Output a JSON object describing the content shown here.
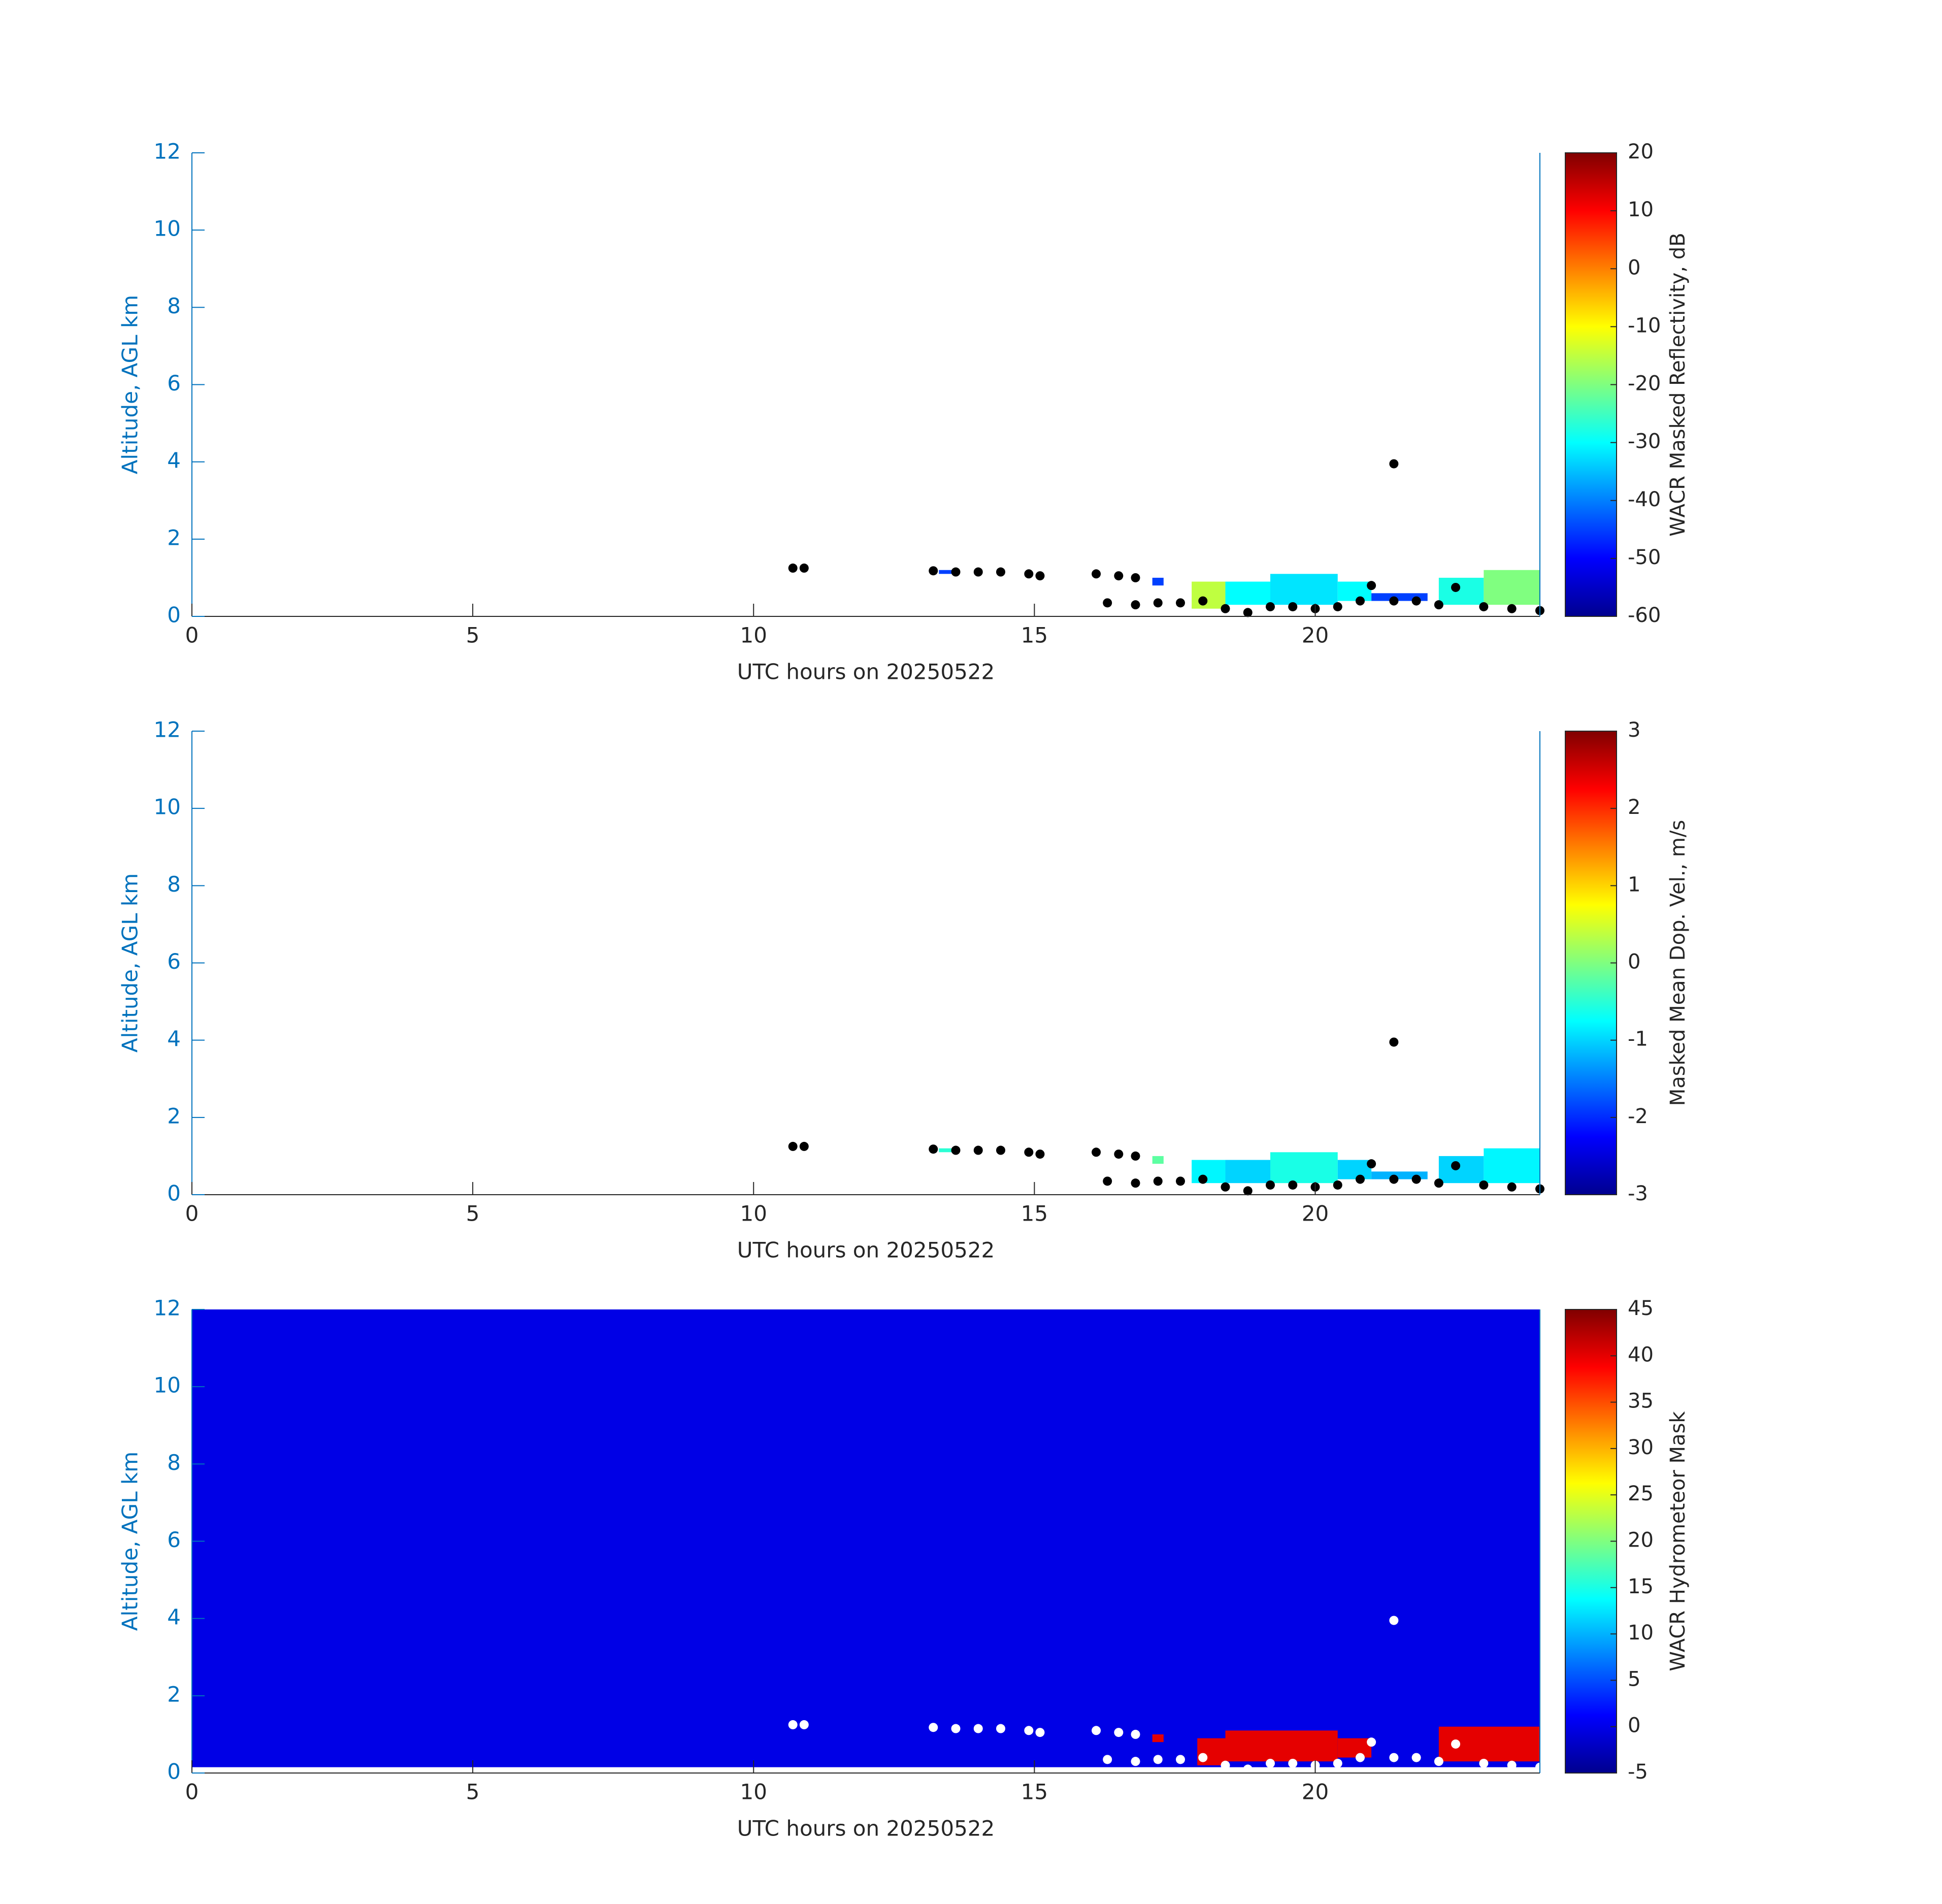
{
  "chart_data": [
    {
      "type": "heatmap",
      "xlabel": "UTC hours on 20250522",
      "ylabel": "Altitude, AGL km",
      "xlim": [
        0,
        24
      ],
      "xticks": [
        0,
        5,
        10,
        15,
        20
      ],
      "ylim": [
        0,
        12
      ],
      "yticks": [
        0,
        2,
        4,
        6,
        8,
        10,
        12
      ],
      "colorbar_label": "WACR Masked Reflectivity, dB",
      "clim": [
        -60,
        20
      ],
      "cticks": [
        -60,
        -50,
        -40,
        -30,
        -20,
        -10,
        0,
        10,
        20
      ],
      "cells": [
        [
          17.8,
          18.4,
          0.2,
          0.9,
          -15
        ],
        [
          18.4,
          19.2,
          0.3,
          0.9,
          -30
        ],
        [
          19.2,
          20.4,
          0.3,
          1.1,
          -32
        ],
        [
          20.4,
          21.0,
          0.4,
          0.9,
          -30
        ],
        [
          21.0,
          22.0,
          0.4,
          0.6,
          -45
        ],
        [
          22.2,
          23.0,
          0.3,
          1.0,
          -28
        ],
        [
          23.0,
          24.0,
          0.3,
          1.2,
          -20
        ],
        [
          17.1,
          17.3,
          0.8,
          1.0,
          -45
        ],
        [
          13.3,
          13.6,
          1.1,
          1.2,
          -45
        ]
      ],
      "overlay": {
        "color": "#000000",
        "x": [
          10.7,
          10.9,
          13.2,
          13.6,
          14.0,
          14.4,
          14.9,
          15.1,
          16.1,
          16.5,
          16.8,
          16.3,
          16.8,
          17.2,
          17.6,
          18.0,
          18.4,
          18.8,
          19.2,
          19.6,
          20.0,
          20.4,
          20.8,
          21.0,
          21.4,
          21.4,
          21.8,
          22.2,
          22.5,
          23.0,
          23.5,
          24.0
        ],
        "y": [
          1.25,
          1.25,
          1.18,
          1.15,
          1.15,
          1.15,
          1.1,
          1.05,
          1.1,
          1.05,
          1.0,
          0.35,
          0.3,
          0.35,
          0.35,
          0.4,
          0.2,
          0.1,
          0.25,
          0.25,
          0.2,
          0.25,
          0.4,
          0.8,
          3.95,
          0.4,
          0.4,
          0.3,
          0.75,
          0.25,
          0.2,
          0.15
        ]
      }
    },
    {
      "type": "heatmap",
      "xlabel": "UTC hours on 20250522",
      "ylabel": "Altitude, AGL km",
      "xlim": [
        0,
        24
      ],
      "xticks": [
        0,
        5,
        10,
        15,
        20
      ],
      "ylim": [
        0,
        12
      ],
      "yticks": [
        0,
        2,
        4,
        6,
        8,
        10,
        12
      ],
      "colorbar_label": "Masked Mean Dop. Vel., m/s",
      "clim": [
        -3,
        3
      ],
      "cticks": [
        -3,
        -2,
        -1,
        0,
        1,
        2,
        3
      ],
      "cells": [
        [
          17.8,
          18.4,
          0.3,
          0.9,
          -0.8
        ],
        [
          18.4,
          19.2,
          0.3,
          0.9,
          -1.0
        ],
        [
          19.2,
          20.4,
          0.3,
          1.1,
          -0.6
        ],
        [
          20.4,
          21.0,
          0.4,
          0.9,
          -1.0
        ],
        [
          21.0,
          22.0,
          0.4,
          0.6,
          -1.2
        ],
        [
          22.2,
          23.0,
          0.3,
          1.0,
          -1.0
        ],
        [
          23.0,
          24.0,
          0.3,
          1.2,
          -0.8
        ],
        [
          17.1,
          17.3,
          0.8,
          1.0,
          -0.2
        ],
        [
          13.3,
          13.6,
          1.1,
          1.2,
          -0.5
        ]
      ],
      "overlay": {
        "color": "#000000",
        "x": [
          10.7,
          10.9,
          13.2,
          13.6,
          14.0,
          14.4,
          14.9,
          15.1,
          16.1,
          16.5,
          16.8,
          16.3,
          16.8,
          17.2,
          17.6,
          18.0,
          18.4,
          18.8,
          19.2,
          19.6,
          20.0,
          20.4,
          20.8,
          21.0,
          21.4,
          21.4,
          21.8,
          22.2,
          22.5,
          23.0,
          23.5,
          24.0
        ],
        "y": [
          1.25,
          1.25,
          1.18,
          1.15,
          1.15,
          1.15,
          1.1,
          1.05,
          1.1,
          1.05,
          1.0,
          0.35,
          0.3,
          0.35,
          0.35,
          0.4,
          0.2,
          0.1,
          0.25,
          0.25,
          0.2,
          0.25,
          0.4,
          0.8,
          3.95,
          0.4,
          0.4,
          0.3,
          0.75,
          0.25,
          0.2,
          0.15
        ]
      }
    },
    {
      "type": "heatmap",
      "xlabel": "UTC hours on 20250522",
      "ylabel": "Altitude, AGL km",
      "xlim": [
        0,
        24
      ],
      "xticks": [
        0,
        5,
        10,
        15,
        20
      ],
      "ylim": [
        0,
        12
      ],
      "yticks": [
        0,
        2,
        4,
        6,
        8,
        10,
        12
      ],
      "colorbar_label": "WACR Hydrometeor Mask",
      "clim": [
        -5,
        45
      ],
      "cticks": [
        -5,
        0,
        5,
        10,
        15,
        20,
        25,
        30,
        35,
        40,
        45
      ],
      "cells": [
        [
          0,
          24,
          0.15,
          12,
          0
        ],
        [
          17.9,
          18.4,
          0.2,
          0.9,
          40
        ],
        [
          18.4,
          20.4,
          0.3,
          1.1,
          40
        ],
        [
          20.4,
          21.0,
          0.4,
          0.9,
          40
        ],
        [
          22.2,
          24.0,
          0.3,
          1.2,
          40
        ],
        [
          17.1,
          17.3,
          0.8,
          1.0,
          40
        ]
      ],
      "overlay": {
        "color": "#ffffff",
        "x": [
          10.7,
          10.9,
          13.2,
          13.6,
          14.0,
          14.4,
          14.9,
          15.1,
          16.1,
          16.5,
          16.8,
          16.3,
          16.8,
          17.2,
          17.6,
          18.0,
          18.4,
          18.8,
          19.2,
          19.6,
          20.0,
          20.4,
          20.8,
          21.0,
          21.4,
          21.4,
          21.8,
          22.2,
          22.5,
          23.0,
          23.5,
          24.0
        ],
        "y": [
          1.25,
          1.25,
          1.18,
          1.15,
          1.15,
          1.15,
          1.1,
          1.05,
          1.1,
          1.05,
          1.0,
          0.35,
          0.3,
          0.35,
          0.35,
          0.4,
          0.2,
          0.1,
          0.25,
          0.25,
          0.2,
          0.25,
          0.4,
          0.8,
          3.95,
          0.4,
          0.4,
          0.3,
          0.75,
          0.25,
          0.2,
          0.15
        ]
      }
    }
  ]
}
